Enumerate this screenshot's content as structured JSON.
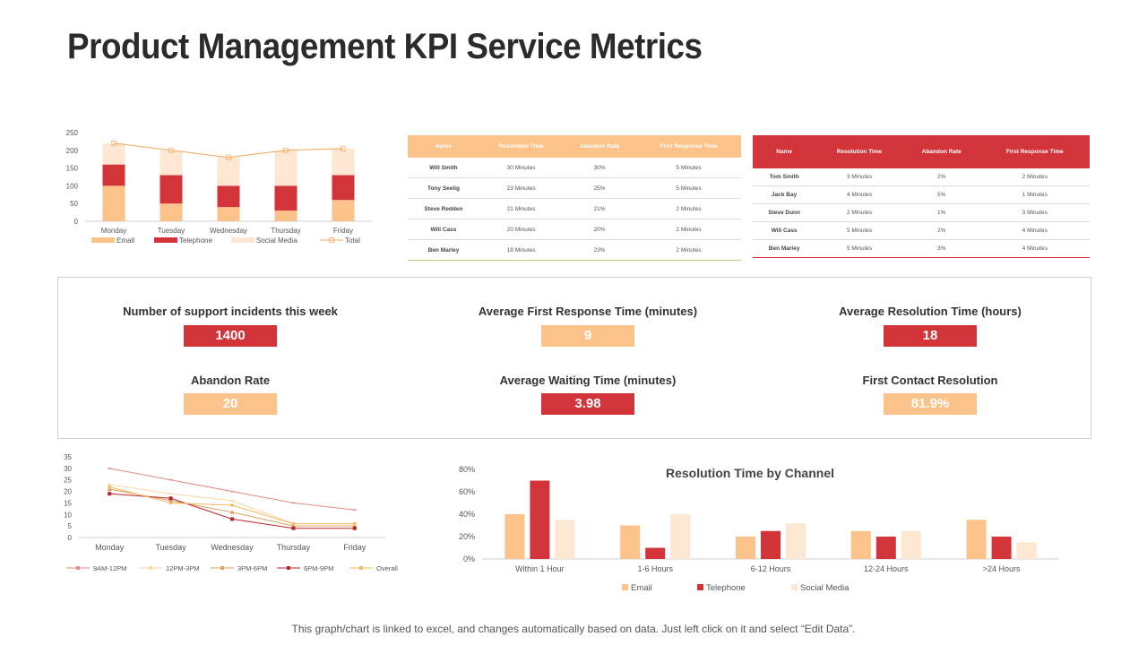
{
  "title": "Product Management KPI Service Metrics",
  "colors": {
    "email": "#FBC38A",
    "telephone": "#D3343A",
    "social": "#FDE6D2",
    "total": "#F2A65A",
    "red": "#D3343A",
    "peach": "#FBC38A"
  },
  "table1": {
    "headers": [
      "Name",
      "Resolution Time",
      "Abandon Rate",
      "First Response Time"
    ],
    "rows": [
      [
        "Will Smith",
        "30 Minutes",
        "30%",
        "5 Minutes"
      ],
      [
        "Tony Seelig",
        "23 Minutes",
        "25%",
        "5 Minutes"
      ],
      [
        "Steve Redden",
        "21 Minutes",
        "21%",
        "2 Minutes"
      ],
      [
        "Will Cass",
        "20 Minutes",
        "20%",
        "2 Minutes"
      ],
      [
        "Ben Marley",
        "18 Minutes",
        "23%",
        "2 Minutes"
      ]
    ]
  },
  "table2": {
    "headers": [
      "Name",
      "Resolution Time",
      "Abandon Rate",
      "First Response Time"
    ],
    "rows": [
      [
        "Tom Smith",
        "3 Minutes",
        "2%",
        "2 Minutes"
      ],
      [
        "Jack Bay",
        "4 Minutes",
        "5%",
        "1 Minutes"
      ],
      [
        "Steve Dunn",
        "2 Minutes",
        "1%",
        "3 Minutes"
      ],
      [
        "Will Cass",
        "5 Minutes",
        "2%",
        "4 Minutes"
      ],
      [
        "Ben Marley",
        "5 Minutes",
        "3%",
        "4 Minutes"
      ]
    ]
  },
  "kpis": [
    {
      "label": "Number of support incidents this week",
      "value": "1400",
      "style": "red"
    },
    {
      "label": "Average First Response Time (minutes)",
      "value": "9",
      "style": "peach"
    },
    {
      "label": "Average Resolution Time (hours)",
      "value": "18",
      "style": "red"
    },
    {
      "label": "Abandon Rate",
      "value": "20",
      "style": "peach"
    },
    {
      "label": "Average Waiting Time (minutes)",
      "value": "3.98",
      "style": "red"
    },
    {
      "label": "First Contact Resolution",
      "value": "81.9%",
      "style": "peach"
    }
  ],
  "footer": "This graph/chart is linked to excel, and changes automatically based on data. Just left click on it and select “Edit Data”.",
  "chart_data": [
    {
      "type": "bar",
      "stacked": true,
      "categories": [
        "Monday",
        "Tuesday",
        "Wednesday",
        "Thursday",
        "Friday"
      ],
      "series": [
        {
          "name": "Email",
          "values": [
            100,
            50,
            40,
            30,
            60
          ]
        },
        {
          "name": "Telephone",
          "values": [
            60,
            80,
            60,
            70,
            70
          ]
        },
        {
          "name": "Social Media",
          "values": [
            60,
            70,
            80,
            100,
            75
          ]
        }
      ],
      "line_series": {
        "name": "Total",
        "values": [
          220,
          200,
          180,
          200,
          205
        ]
      },
      "ylim": [
        0,
        250
      ],
      "yticks": [
        0,
        50,
        100,
        150,
        200,
        250
      ],
      "title": "",
      "xlabel": "",
      "ylabel": ""
    },
    {
      "type": "line",
      "categories": [
        "Monday",
        "Tuesday",
        "Wednesday",
        "Thursday",
        "Friday"
      ],
      "series": [
        {
          "name": "9AM-12PM",
          "values": [
            30,
            25,
            20,
            15,
            12
          ]
        },
        {
          "name": "12PM-3PM",
          "values": [
            23,
            19,
            16,
            6,
            6
          ]
        },
        {
          "name": "3PM-6PM",
          "values": [
            21,
            16,
            11,
            5,
            5
          ]
        },
        {
          "name": "6PM-9PM",
          "values": [
            19,
            17,
            8,
            4,
            4
          ]
        },
        {
          "name": "Overall",
          "values": [
            22,
            15,
            14,
            6,
            6
          ]
        }
      ],
      "ylim": [
        0,
        35
      ],
      "yticks": [
        0,
        5,
        10,
        15,
        20,
        25,
        30,
        35
      ],
      "title": "",
      "xlabel": "",
      "ylabel": ""
    },
    {
      "type": "bar",
      "title": "Resolution Time by Channel",
      "categories": [
        "Within 1 Hour",
        "1-6 Hours",
        "6-12 Hours",
        "12-24 Hours",
        ">24 Hours"
      ],
      "series": [
        {
          "name": "Email",
          "values": [
            40,
            30,
            20,
            25,
            35
          ]
        },
        {
          "name": "Telephone",
          "values": [
            70,
            10,
            25,
            20,
            20
          ]
        },
        {
          "name": "Social Media",
          "values": [
            35,
            40,
            32,
            25,
            15
          ]
        }
      ],
      "ylim": [
        0,
        80
      ],
      "yticks": [
        "0%",
        "20%",
        "40%",
        "60%",
        "80%"
      ],
      "xlabel": "",
      "ylabel": ""
    }
  ]
}
